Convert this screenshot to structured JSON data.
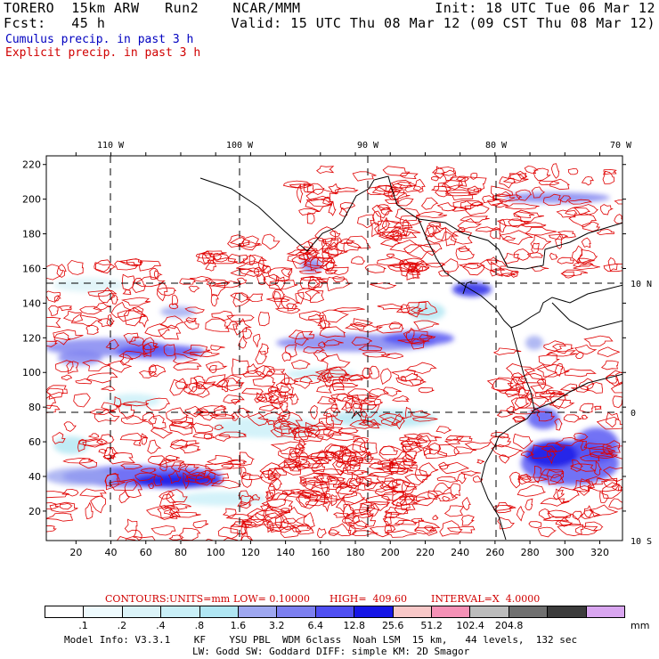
{
  "header": {
    "line1_left": "TORERO  15km ARW   Run2    NCAR/MMM",
    "line1_right": "Init: 18 UTC Tue 06 Mar 12",
    "line2_left": "Fcst:   45 h",
    "line2_right": "Valid: 15 UTC Thu 08 Mar 12 (09 CST Thu 08 Mar 12)",
    "cumulus": "Cumulus precip. in past 3 h",
    "explicit": "Explicit precip. in past 3 h"
  },
  "colors": {
    "cumulus_text": "#0000c0",
    "explicit_text": "#d00000",
    "contour": "#e00000",
    "grid": "#000000"
  },
  "top_lon_labels": [
    "110 W",
    "100 W",
    "90 W",
    "80 W",
    "70 W"
  ],
  "right_lat_labels": [
    "10 N",
    "0",
    "10 S"
  ],
  "y_axis": {
    "ticks": [
      "20",
      "40",
      "60",
      "80",
      "100",
      "120",
      "140",
      "160",
      "180",
      "200",
      "220"
    ]
  },
  "x_axis": {
    "ticks": [
      "20",
      "40",
      "60",
      "80",
      "100",
      "120",
      "140",
      "160",
      "180",
      "200",
      "220",
      "240",
      "260",
      "280",
      "300",
      "320"
    ]
  },
  "contours": {
    "prefix": "CONTOURS:",
    "units": "UNITS=mm",
    "low": "LOW= 0.10000",
    "high": "HIGH=  409.60",
    "interval": "INTERVAL=X  4.0000"
  },
  "legend": {
    "colors": [
      "#ffffff",
      "#eefafd",
      "#dbf3f8",
      "#c9eff7",
      "#b0e6f3",
      "#9ea7f0",
      "#7c7ff0",
      "#4f4ff2",
      "#1616e6",
      "#f8c8c8",
      "#f591b6",
      "#bcbcbc",
      "#707070",
      "#3c3c3c",
      "#d9a6f0"
    ],
    "labels": [
      ".1",
      ".2",
      ".4",
      ".8",
      "1.6",
      "3.2",
      "6.4",
      "12.8",
      "25.6",
      "51.2",
      "102.4",
      "204.8"
    ],
    "unit": "mm"
  },
  "model_info": {
    "line1": "Model Info: V3.3.1    KF    YSU PBL  WDM 6class  Noah LSM  15 km,   44 levels,  132 sec",
    "line2": "LW: Godd SW: Goddard DIFF: simple KM: 2D Smagor"
  }
}
